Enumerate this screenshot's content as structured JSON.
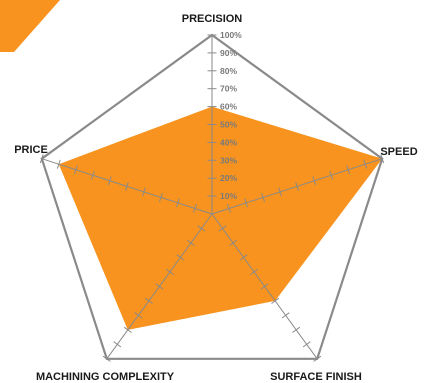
{
  "chart_data": {
    "type": "radar",
    "title": "",
    "axes": [
      "PRECISION",
      "SPEED",
      "SURFACE FINISH",
      "MACHINING COMPLEXITY",
      "PRICE"
    ],
    "tick_labels": [
      "10%",
      "20%",
      "30%",
      "40%",
      "50%",
      "60%",
      "70%",
      "80%",
      "90%",
      "100%"
    ],
    "range": [
      0,
      100
    ],
    "series": [
      {
        "values": [
          60,
          100,
          60,
          80,
          90
        ]
      }
    ],
    "colors": {
      "fill": "#F7931E",
      "outline": "#8a8a8a",
      "ticks": "#8a8a8a",
      "tick_label": "#7a7a7a",
      "axis_label": "#1a1a1a",
      "corner_logo": "#F7931E"
    }
  },
  "logo": {
    "icon": "orange-chevron-logo-icon"
  }
}
